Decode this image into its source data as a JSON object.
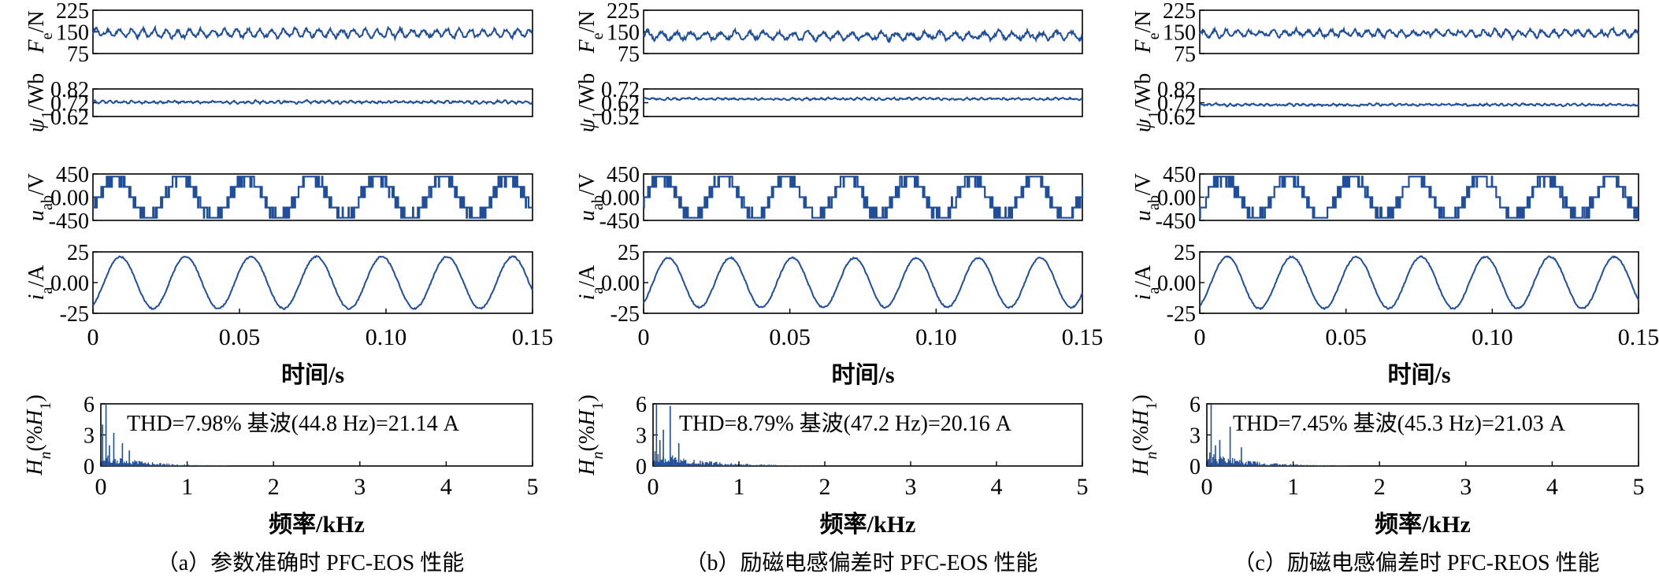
{
  "figure": {
    "panels": [
      {
        "id": "a",
        "caption": "（a）参数准确时 PFC-EOS 性能",
        "thd": "THD=7.98%  基波(44.8 Hz)=21.14 A"
      },
      {
        "id": "b",
        "caption": "（b）励磁电感偏差时 PFC-EOS 性能",
        "thd": "THD=8.79%  基波(47.2 Hz)=20.16 A"
      },
      {
        "id": "c",
        "caption": "（c）励磁电感偏差时 PFC-REOS 性能",
        "thd": "THD=7.45%  基波(45.3 Hz)=21.03 A"
      }
    ],
    "time_axis_label": "时间/s",
    "freq_axis_label": "频率/kHz",
    "time_ticks": [
      "0",
      "0.05",
      "0.10",
      "0.15"
    ],
    "freq_ticks": [
      "0",
      "1",
      "2",
      "3",
      "4",
      "5"
    ],
    "line_color": "#1f4e9c"
  },
  "chart_data": [
    {
      "type": "line",
      "panel": "a",
      "title": "",
      "xlabel": "",
      "ylabel": "Fe/N",
      "xlim": [
        0,
        0.15
      ],
      "ylim": [
        75,
        225
      ],
      "y_ticks": [
        75,
        150,
        225
      ],
      "series": [
        {
          "kind": "noisy",
          "mean": 145,
          "amp": 15,
          "period": 0.004,
          "noise": 12,
          "seed": 11
        }
      ]
    },
    {
      "type": "line",
      "panel": "a",
      "title": "",
      "xlabel": "",
      "ylabel": "ψ1/Wb",
      "xlim": [
        0,
        0.15
      ],
      "ylim": [
        0.62,
        0.82
      ],
      "y_ticks": [
        0.62,
        0.72,
        0.82
      ],
      "series": [
        {
          "kind": "noisy",
          "mean": 0.725,
          "amp": 0.008,
          "period": 0.0025,
          "noise": 0.012,
          "seed": 21
        }
      ]
    },
    {
      "type": "line",
      "panel": "a",
      "title": "",
      "xlabel": "",
      "ylabel": "uab/V",
      "xlim": [
        0,
        0.15
      ],
      "ylim": [
        -450,
        450
      ],
      "y_ticks": [
        -450,
        0,
        450
      ],
      "series": [
        {
          "kind": "pwm",
          "freq_hz": 44.8,
          "amplitude": 400,
          "phase": 0.6,
          "seed": 31
        }
      ]
    },
    {
      "type": "line",
      "panel": "a",
      "title": "",
      "xlabel": "时间/s",
      "ylabel": "ia/A",
      "xlim": [
        0,
        0.15
      ],
      "ylim": [
        -25,
        25
      ],
      "y_ticks": [
        -25,
        0,
        25
      ],
      "series": [
        {
          "kind": "sine",
          "freq_hz": 44.8,
          "amplitude": 21.14,
          "phase": 1.05,
          "noise": 0.6,
          "seed": 41
        }
      ]
    },
    {
      "type": "bar",
      "panel": "a",
      "title": "",
      "xlabel": "频率/kHz",
      "ylabel": "Hn(%H1)",
      "xlim": [
        0,
        5
      ],
      "ylim": [
        0,
        6
      ],
      "y_ticks": [
        0,
        3,
        6
      ],
      "spikes": [
        [
          0.06,
          6.0
        ],
        [
          0.15,
          3.2
        ],
        [
          0.25,
          2.2
        ],
        [
          0.33,
          1.5
        ],
        [
          0.02,
          4.0
        ],
        [
          0.1,
          2.0
        ]
      ],
      "floor": 0.9,
      "decay": 0.45,
      "seed": 51
    },
    {
      "type": "line",
      "panel": "b",
      "title": "",
      "xlabel": "",
      "ylabel": "Fe/N",
      "xlim": [
        0,
        0.15
      ],
      "ylim": [
        75,
        225
      ],
      "y_ticks": [
        75,
        150,
        225
      ],
      "series": [
        {
          "kind": "noisy",
          "mean": 137,
          "amp": 14,
          "period": 0.005,
          "noise": 13,
          "seed": 12
        }
      ]
    },
    {
      "type": "line",
      "panel": "b",
      "title": "",
      "xlabel": "",
      "ylabel": "ψ1/Wb",
      "xlim": [
        0,
        0.15
      ],
      "ylim": [
        0.52,
        0.72
      ],
      "y_ticks": [
        0.52,
        0.62,
        0.72
      ],
      "series": [
        {
          "kind": "noisy",
          "mean": 0.648,
          "amp": 0.006,
          "period": 0.0025,
          "noise": 0.01,
          "seed": 22
        }
      ]
    },
    {
      "type": "line",
      "panel": "b",
      "title": "",
      "xlabel": "",
      "ylabel": "uab/V",
      "xlim": [
        0,
        0.15
      ],
      "ylim": [
        -450,
        450
      ],
      "y_ticks": [
        -450,
        0,
        450
      ],
      "series": [
        {
          "kind": "pwm",
          "freq_hz": 47.2,
          "amplitude": 400,
          "phase": 0.3,
          "seed": 32
        }
      ]
    },
    {
      "type": "line",
      "panel": "b",
      "title": "",
      "xlabel": "时间/s",
      "ylabel": "ia/A",
      "xlim": [
        0,
        0.15
      ],
      "ylim": [
        -25,
        25
      ],
      "y_ticks": [
        -25,
        0,
        25
      ],
      "series": [
        {
          "kind": "sine",
          "freq_hz": 47.2,
          "amplitude": 20.16,
          "phase": 0.95,
          "noise": 0.6,
          "seed": 42
        }
      ]
    },
    {
      "type": "bar",
      "panel": "b",
      "title": "",
      "xlabel": "频率/kHz",
      "ylabel": "Hn(%H1)",
      "xlim": [
        0,
        5
      ],
      "ylim": [
        0,
        6
      ],
      "y_ticks": [
        0,
        3,
        6
      ],
      "spikes": [
        [
          0.04,
          6.0
        ],
        [
          0.2,
          5.8
        ],
        [
          0.12,
          3.5
        ],
        [
          0.3,
          2.2
        ],
        [
          0.08,
          2.5
        ]
      ],
      "floor": 1.0,
      "decay": 0.55,
      "seed": 52
    },
    {
      "type": "line",
      "panel": "c",
      "title": "",
      "xlabel": "",
      "ylabel": "Fe/N",
      "xlim": [
        0,
        0.15
      ],
      "ylim": [
        75,
        225
      ],
      "y_ticks": [
        75,
        150,
        225
      ],
      "series": [
        {
          "kind": "noisy",
          "mean": 145,
          "amp": 12,
          "period": 0.004,
          "noise": 12,
          "seed": 13
        }
      ]
    },
    {
      "type": "line",
      "panel": "c",
      "title": "",
      "xlabel": "",
      "ylabel": "ψ1/Wb",
      "xlim": [
        0,
        0.15
      ],
      "ylim": [
        0.62,
        0.82
      ],
      "y_ticks": [
        0.62,
        0.72,
        0.82
      ],
      "series": [
        {
          "kind": "noisy",
          "mean": 0.705,
          "amp": 0.006,
          "period": 0.0025,
          "noise": 0.011,
          "seed": 23
        }
      ]
    },
    {
      "type": "line",
      "panel": "c",
      "title": "",
      "xlabel": "",
      "ylabel": "uab/V",
      "xlim": [
        0,
        0.15
      ],
      "ylim": [
        -450,
        450
      ],
      "y_ticks": [
        -450,
        0,
        450
      ],
      "series": [
        {
          "kind": "pwm",
          "freq_hz": 45.3,
          "amplitude": 400,
          "phase": 0.7,
          "seed": 33
        }
      ]
    },
    {
      "type": "line",
      "panel": "c",
      "title": "",
      "xlabel": "时间/s",
      "ylabel": "ia/A",
      "xlim": [
        0,
        0.15
      ],
      "ylim": [
        -25,
        25
      ],
      "y_ticks": [
        -25,
        0,
        25
      ],
      "series": [
        {
          "kind": "sine",
          "freq_hz": 45.3,
          "amplitude": 21.03,
          "phase": 1.1,
          "noise": 0.6,
          "seed": 43
        }
      ]
    },
    {
      "type": "bar",
      "panel": "c",
      "title": "",
      "xlabel": "频率/kHz",
      "ylabel": "Hn(%H1)",
      "xlim": [
        0,
        5
      ],
      "ylim": [
        0,
        6
      ],
      "y_ticks": [
        0,
        3,
        6
      ],
      "spikes": [
        [
          0.05,
          6.0
        ],
        [
          0.27,
          3.8
        ],
        [
          0.15,
          2.5
        ],
        [
          0.4,
          1.8
        ],
        [
          0.1,
          2.0
        ]
      ],
      "floor": 0.9,
      "decay": 0.5,
      "seed": 53
    }
  ]
}
